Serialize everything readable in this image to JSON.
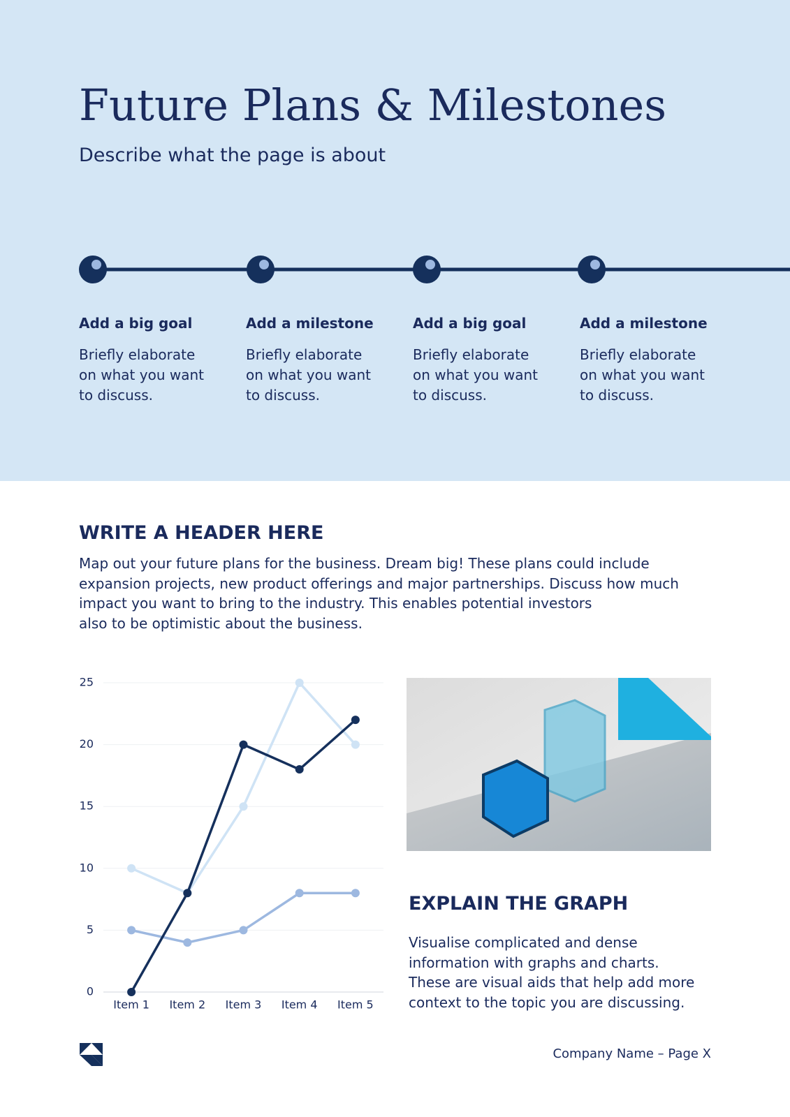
{
  "header": {
    "title": "Future Plans & Milestones",
    "subtitle": "Describe what the page is about"
  },
  "milestones": [
    {
      "title": "Add a big goal",
      "text": [
        "Briefly elaborate",
        "on what you want",
        "to discuss."
      ]
    },
    {
      "title": "Add a milestone",
      "text": [
        "Briefly elaborate",
        "on what you want",
        "to discuss."
      ]
    },
    {
      "title": "Add a big goal",
      "text": [
        "Briefly elaborate",
        "on what you want",
        "to discuss."
      ]
    },
    {
      "title": "Add a milestone",
      "text": [
        "Briefly elaborate",
        "on what you want",
        "to discuss."
      ]
    }
  ],
  "section": {
    "title": "WRITE A HEADER HERE",
    "text": [
      "Map out your future plans for the business. Dream big! These plans could include",
      "expansion projects, new product offerings and major partnerships. Discuss how much",
      "impact you want to bring to the industry. This enables potential investors",
      "also to be optimistic about the business."
    ]
  },
  "chart_data": {
    "type": "line",
    "categories": [
      "Item 1",
      "Item 2",
      "Item 3",
      "Item 4",
      "Item 5"
    ],
    "series": [
      {
        "color": "#cfe3f5",
        "values": [
          10,
          8,
          15,
          25,
          20
        ]
      },
      {
        "color": "#9db8e0",
        "values": [
          5,
          4,
          5,
          8,
          8
        ]
      },
      {
        "color": "#15305c",
        "values": [
          0,
          8,
          20,
          18,
          22
        ]
      }
    ],
    "ylim": [
      0,
      25
    ],
    "yticks": [
      0,
      5,
      10,
      15,
      20,
      25
    ],
    "grid": true
  },
  "explain": {
    "title": "EXPLAIN THE GRAPH",
    "text": [
      "Visualise complicated and dense",
      "information with graphs and charts.",
      "These are visual aids that help add more",
      "context to the topic you are discussing."
    ]
  },
  "footer": {
    "text": "Company Name – Page X"
  }
}
